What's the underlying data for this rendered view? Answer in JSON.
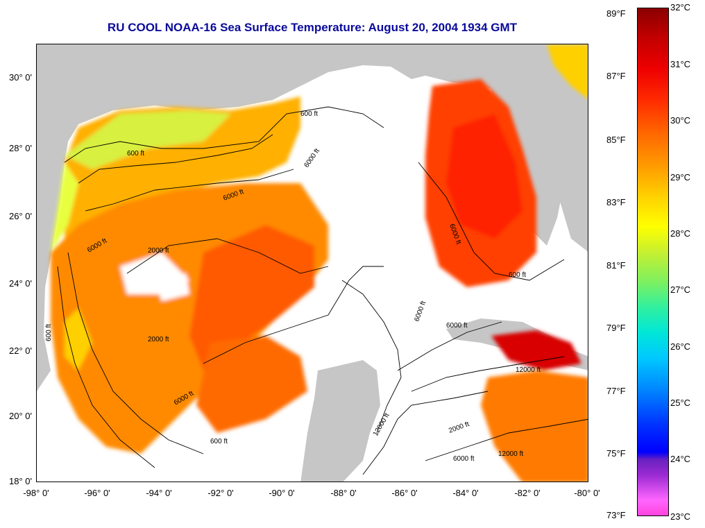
{
  "title": "RU COOL  NOAA-16  Sea Surface Temperature:  August 20, 2004 1934 GMT",
  "latitude_labels": [
    "30° 0'",
    "28° 0'",
    "26° 0'",
    "24° 0'",
    "22° 0'",
    "20° 0'",
    "18° 0'"
  ],
  "longitude_labels": [
    "-98° 0'",
    "-96° 0'",
    "-94° 0'",
    "-92° 0'",
    "-90° 0'",
    "-88° 0'",
    "-86° 0'",
    "-84° 0'",
    "-82° 0'",
    "-80° 0'"
  ],
  "colorbar": {
    "fahrenheit_labels": [
      "89°F",
      "87°F",
      "85°F",
      "83°F",
      "81°F",
      "79°F",
      "77°F",
      "75°F",
      "73°F"
    ],
    "celsius_labels": [
      "32°C",
      "31°C",
      "30°C",
      "29°C",
      "28°C",
      "27°C",
      "26°C",
      "25°C",
      "24°C",
      "23°C"
    ]
  },
  "contour_labels": {
    "ft600": "600 ft",
    "ft6000": "6000 ft",
    "ft12000": "12000 ft",
    "ft2000": "2000 ft"
  },
  "colors": {
    "land": "#c6c6c6",
    "no_data": "#ffffff",
    "title": "#0a0a9c"
  }
}
